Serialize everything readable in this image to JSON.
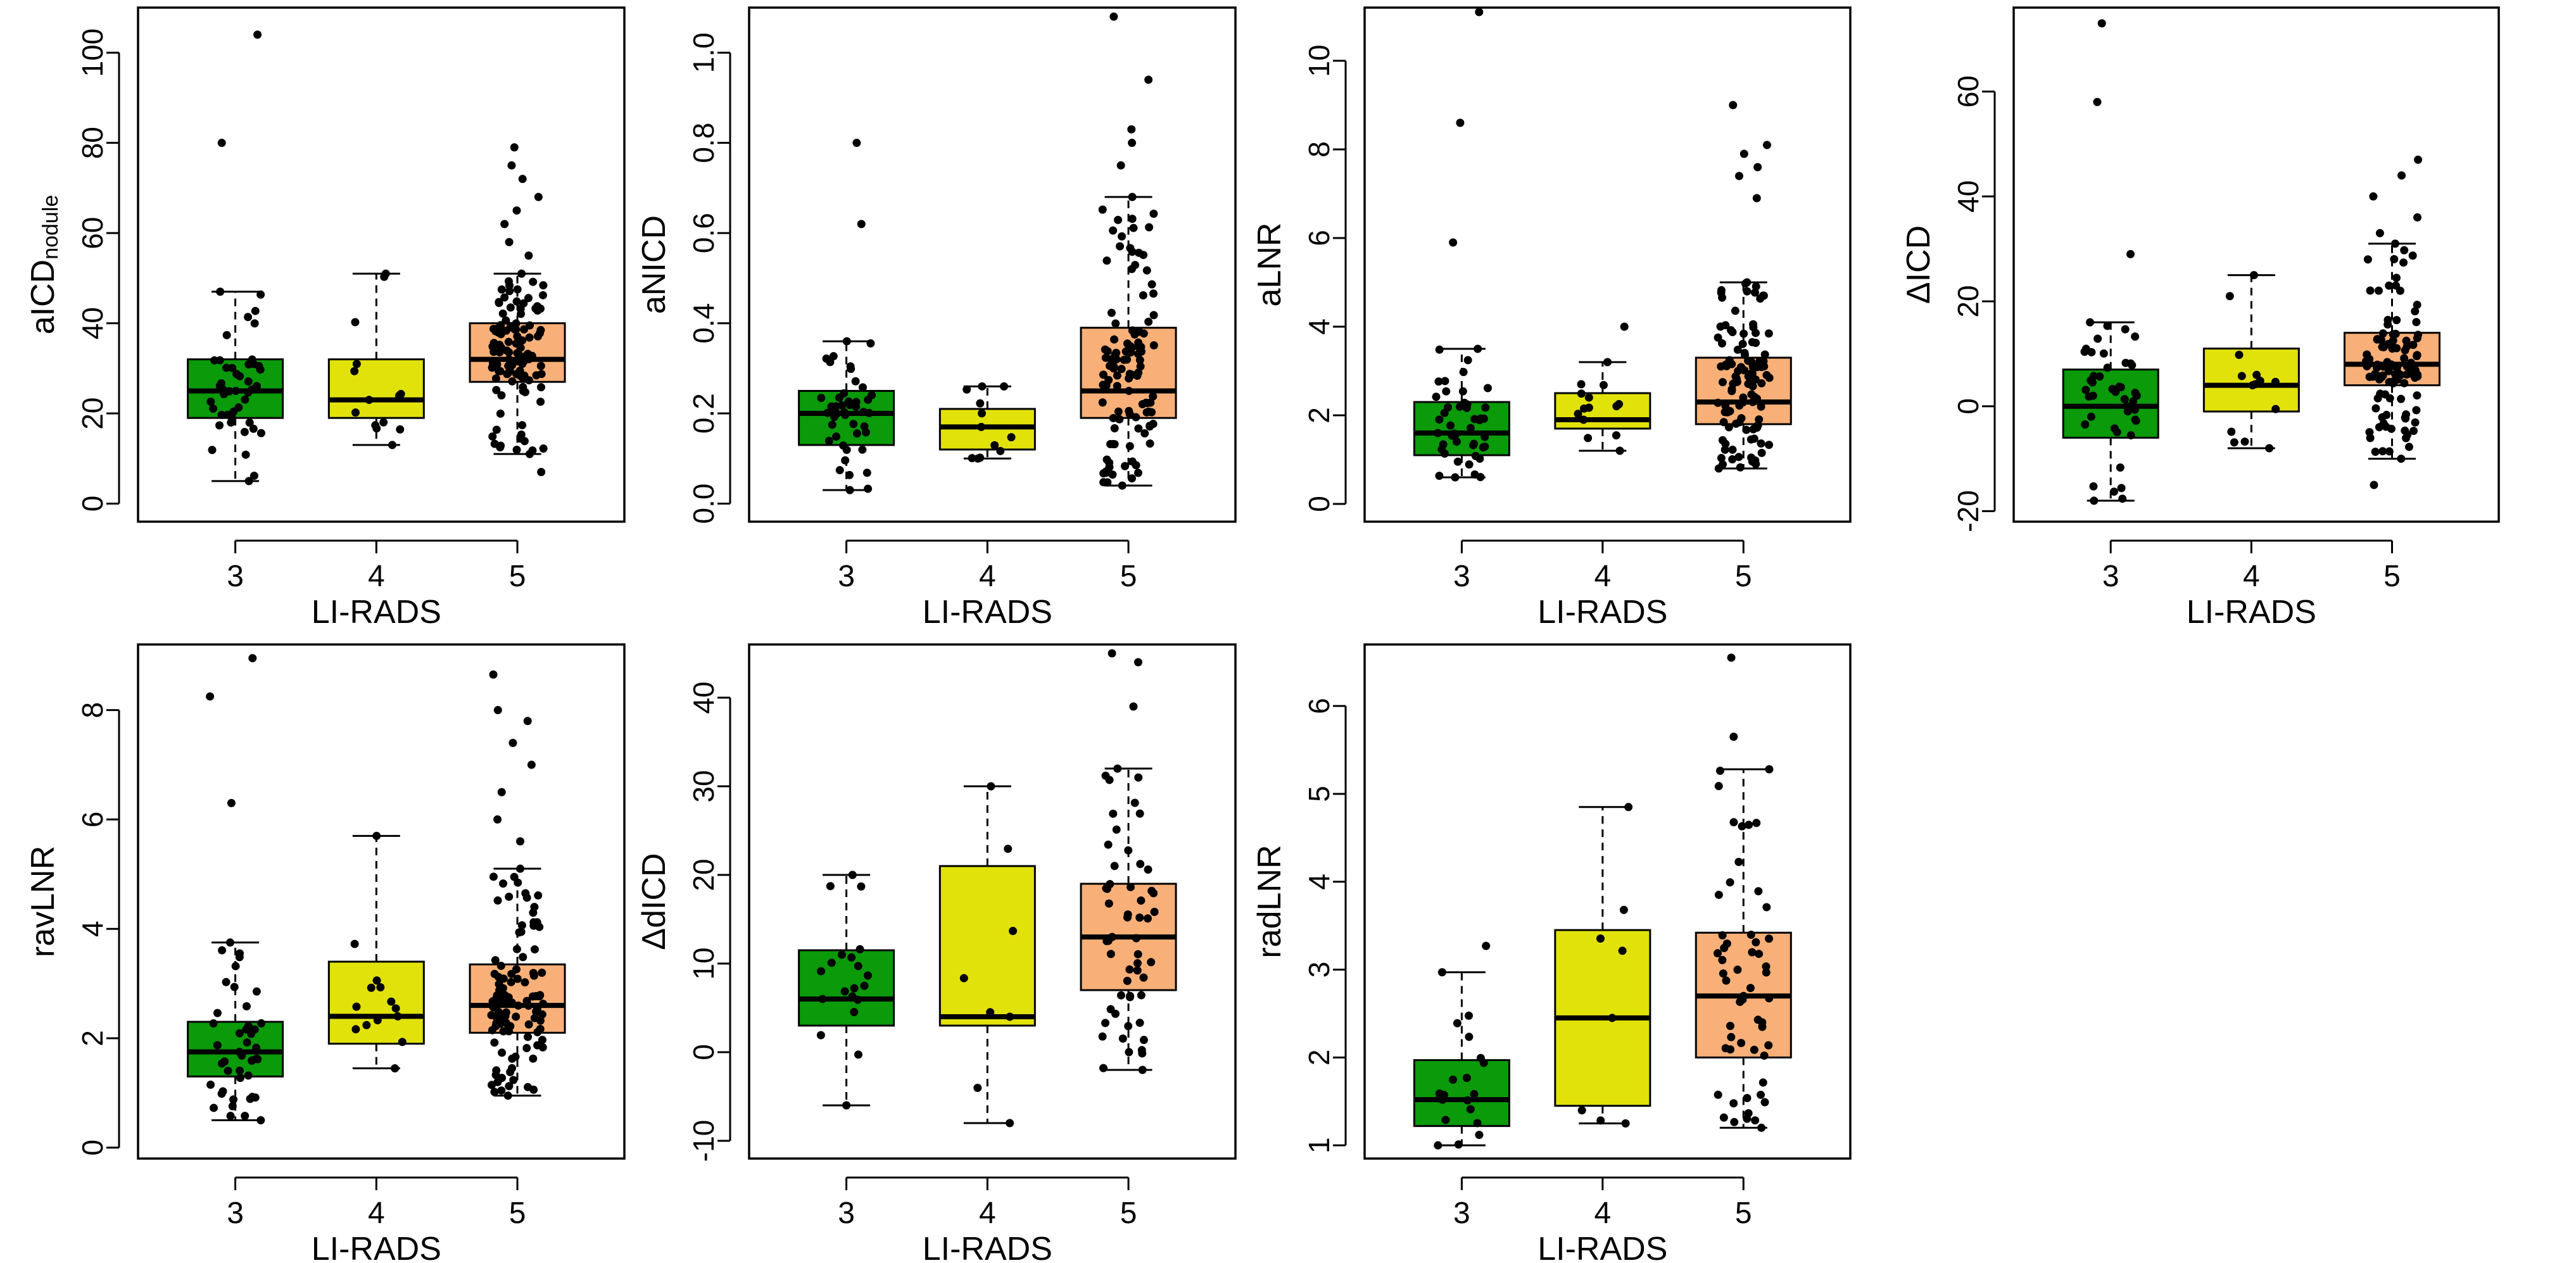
{
  "colors": {
    "3": "#0a9a0a",
    "4": "#e2e20b",
    "5": "#f8b078"
  },
  "chart_data": [
    {
      "type": "boxplot",
      "id": "aicd",
      "ylabel": "aICD",
      "ylabel_sub": "nodule",
      "xlabel": "LI-RADS",
      "categories": [
        "3",
        "4",
        "5"
      ],
      "ylim": [
        -4,
        110
      ],
      "yticks": [
        0,
        20,
        40,
        60,
        80,
        100
      ],
      "boxes": [
        {
          "cat": "3",
          "min": 5,
          "q1": 19,
          "median": 25,
          "q3": 32,
          "max": 47
        },
        {
          "cat": "4",
          "min": 13,
          "q1": 19,
          "median": 23,
          "q3": 32,
          "max": 51
        },
        {
          "cat": "5",
          "min": 11,
          "q1": 27,
          "median": 32,
          "q3": 40,
          "max": 51
        }
      ],
      "outliers": [
        {
          "cat": "3",
          "values": [
            80,
            104
          ]
        },
        {
          "cat": "4",
          "values": []
        },
        {
          "cat": "5",
          "values": [
            7,
            55,
            58,
            62,
            65,
            68,
            72,
            75,
            79
          ]
        }
      ],
      "point_counts": {
        "3": 45,
        "4": 14,
        "5": 110
      }
    },
    {
      "type": "boxplot",
      "id": "anicd",
      "ylabel": "aNICD",
      "ylabel_sub": "",
      "xlabel": "LI-RADS",
      "categories": [
        "3",
        "4",
        "5"
      ],
      "ylim": [
        -0.04,
        1.1
      ],
      "yticks": [
        0.0,
        0.2,
        0.4,
        0.6,
        0.8,
        1.0
      ],
      "boxes": [
        {
          "cat": "3",
          "min": 0.03,
          "q1": 0.13,
          "median": 0.2,
          "q3": 0.25,
          "max": 0.36
        },
        {
          "cat": "4",
          "min": 0.1,
          "q1": 0.12,
          "median": 0.17,
          "q3": 0.21,
          "max": 0.26
        },
        {
          "cat": "5",
          "min": 0.04,
          "q1": 0.19,
          "median": 0.25,
          "q3": 0.39,
          "max": 0.68
        }
      ],
      "outliers": [
        {
          "cat": "3",
          "values": [
            0.62,
            0.8
          ]
        },
        {
          "cat": "4",
          "values": []
        },
        {
          "cat": "5",
          "values": [
            0.75,
            0.8,
            0.83,
            0.94,
            1.08
          ]
        }
      ],
      "point_counts": {
        "3": 45,
        "4": 12,
        "5": 110
      }
    },
    {
      "type": "boxplot",
      "id": "alnr",
      "ylabel": "aLNR",
      "ylabel_sub": "",
      "xlabel": "LI-RADS",
      "categories": [
        "3",
        "4",
        "5"
      ],
      "ylim": [
        -0.4,
        11.2
      ],
      "yticks": [
        0,
        2,
        4,
        6,
        8,
        10
      ],
      "boxes": [
        {
          "cat": "3",
          "min": 0.6,
          "q1": 1.1,
          "median": 1.6,
          "q3": 2.3,
          "max": 3.5
        },
        {
          "cat": "4",
          "min": 1.2,
          "q1": 1.7,
          "median": 1.9,
          "q3": 2.5,
          "max": 3.2
        },
        {
          "cat": "5",
          "min": 0.8,
          "q1": 1.8,
          "median": 2.3,
          "q3": 3.3,
          "max": 5.0
        }
      ],
      "outliers": [
        {
          "cat": "3",
          "values": [
            5.9,
            8.6,
            11.1
          ]
        },
        {
          "cat": "4",
          "values": [
            4.0
          ]
        },
        {
          "cat": "5",
          "values": [
            6.9,
            7.4,
            7.6,
            7.9,
            8.1,
            9.0
          ]
        }
      ],
      "point_counts": {
        "3": 45,
        "4": 14,
        "5": 110
      }
    },
    {
      "type": "boxplot",
      "id": "delta-icd",
      "ylabel": "ΔICD",
      "ylabel_sub": "",
      "xlabel": "LI-RADS",
      "categories": [
        "3",
        "4",
        "5"
      ],
      "ylim": [
        -22,
        76
      ],
      "yticks": [
        -20,
        0,
        20,
        40,
        60
      ],
      "boxes": [
        {
          "cat": "3",
          "min": -18,
          "q1": -6,
          "median": 0,
          "q3": 7,
          "max": 16
        },
        {
          "cat": "4",
          "min": -8,
          "q1": -1,
          "median": 4,
          "q3": 11,
          "max": 25
        },
        {
          "cat": "5",
          "min": -10,
          "q1": 4,
          "median": 8,
          "q3": 14,
          "max": 31
        }
      ],
      "outliers": [
        {
          "cat": "3",
          "values": [
            29,
            58,
            73
          ]
        },
        {
          "cat": "4",
          "values": []
        },
        {
          "cat": "5",
          "values": [
            -15,
            33,
            36,
            40,
            44,
            47
          ]
        }
      ],
      "point_counts": {
        "3": 45,
        "4": 14,
        "5": 110
      }
    },
    {
      "type": "boxplot",
      "id": "ravlnr",
      "ylabel": "ravLNR",
      "ylabel_sub": "",
      "xlabel": "LI-RADS",
      "categories": [
        "3",
        "4",
        "5"
      ],
      "ylim": [
        -0.2,
        9.2
      ],
      "yticks": [
        0,
        2,
        4,
        6,
        8
      ],
      "boxes": [
        {
          "cat": "3",
          "min": 0.5,
          "q1": 1.3,
          "median": 1.75,
          "q3": 2.3,
          "max": 3.75
        },
        {
          "cat": "4",
          "min": 1.45,
          "q1": 1.9,
          "median": 2.4,
          "q3": 3.4,
          "max": 5.7
        },
        {
          "cat": "5",
          "min": 0.95,
          "q1": 2.1,
          "median": 2.6,
          "q3": 3.35,
          "max": 5.1
        }
      ],
      "outliers": [
        {
          "cat": "3",
          "values": [
            6.3,
            8.25,
            8.95
          ]
        },
        {
          "cat": "4",
          "values": []
        },
        {
          "cat": "5",
          "values": [
            5.6,
            6.0,
            6.5,
            7.0,
            7.4,
            7.8,
            8.0,
            8.65
          ]
        }
      ],
      "point_counts": {
        "3": 45,
        "4": 14,
        "5": 110
      }
    },
    {
      "type": "boxplot",
      "id": "delta-dicd",
      "ylabel": "ΔdICD",
      "ylabel_sub": "",
      "xlabel": "LI-RADS",
      "categories": [
        "3",
        "4",
        "5"
      ],
      "ylim": [
        -12,
        46
      ],
      "yticks": [
        -10,
        0,
        10,
        20,
        30,
        40
      ],
      "boxes": [
        {
          "cat": "3",
          "min": -6,
          "q1": 3,
          "median": 6,
          "q3": 11.5,
          "max": 20
        },
        {
          "cat": "4",
          "min": -8,
          "q1": 3,
          "median": 4,
          "q3": 21,
          "max": 30
        },
        {
          "cat": "5",
          "min": -2,
          "q1": 7,
          "median": 13,
          "q3": 19,
          "max": 32
        }
      ],
      "outliers": [
        {
          "cat": "3",
          "values": []
        },
        {
          "cat": "4",
          "values": []
        },
        {
          "cat": "5",
          "values": [
            39,
            44,
            45
          ]
        }
      ],
      "point_counts": {
        "3": 20,
        "4": 8,
        "5": 55
      }
    },
    {
      "type": "boxplot",
      "id": "radlnr",
      "ylabel": "radLNR",
      "ylabel_sub": "",
      "xlabel": "LI-RADS",
      "categories": [
        "3",
        "4",
        "5"
      ],
      "ylim": [
        0.85,
        6.7
      ],
      "yticks": [
        1,
        2,
        3,
        4,
        5,
        6
      ],
      "boxes": [
        {
          "cat": "3",
          "min": 1.0,
          "q1": 1.22,
          "median": 1.52,
          "q3": 1.97,
          "max": 2.97
        },
        {
          "cat": "4",
          "min": 1.25,
          "q1": 1.45,
          "median": 2.45,
          "q3": 3.45,
          "max": 4.85
        },
        {
          "cat": "5",
          "min": 1.2,
          "q1": 2.0,
          "median": 2.7,
          "q3": 3.42,
          "max": 5.28
        }
      ],
      "outliers": [
        {
          "cat": "3",
          "values": [
            3.27
          ]
        },
        {
          "cat": "4",
          "values": []
        },
        {
          "cat": "5",
          "values": [
            5.65,
            6.55
          ]
        }
      ],
      "point_counts": {
        "3": 20,
        "4": 8,
        "5": 55
      }
    }
  ]
}
